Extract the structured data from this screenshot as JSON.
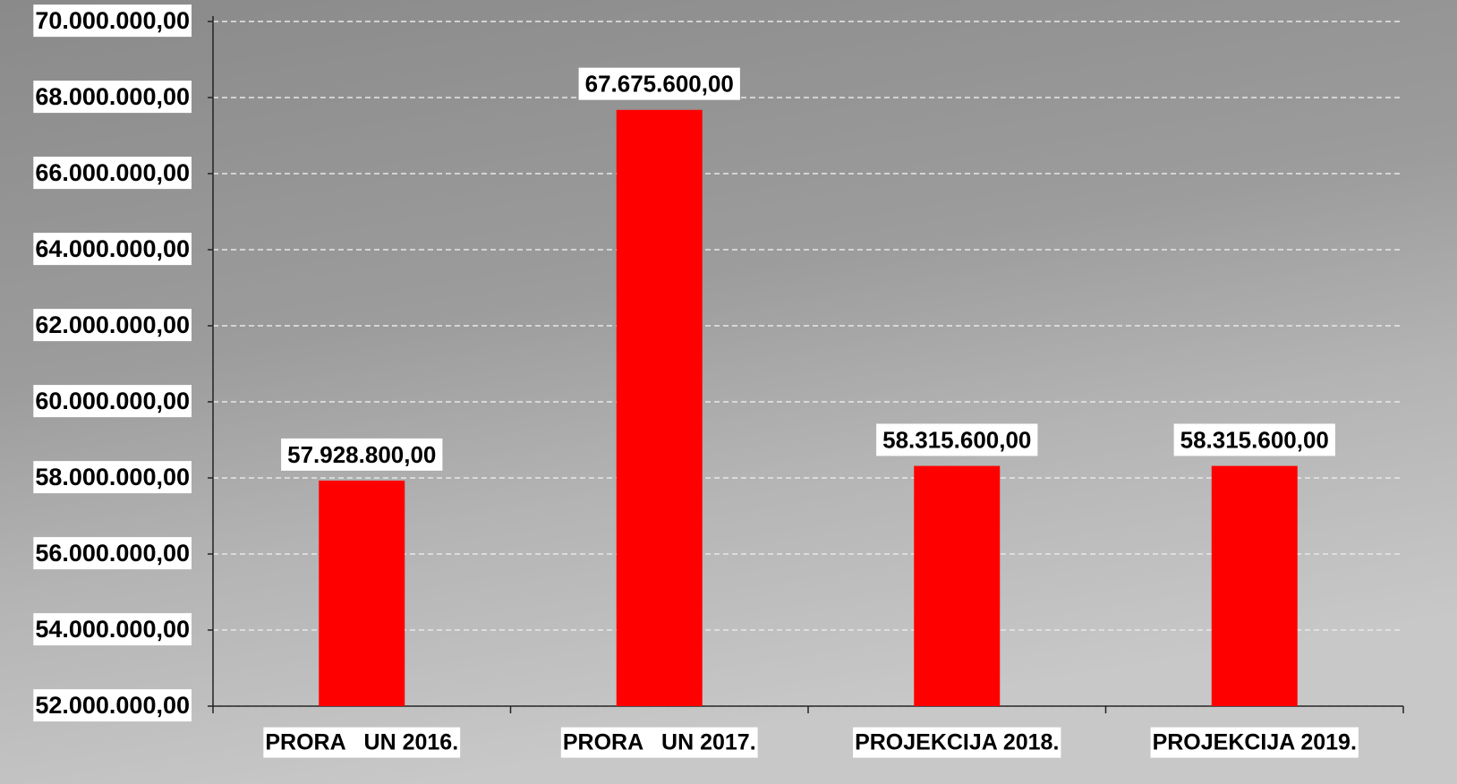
{
  "chart_data": {
    "type": "bar",
    "categories": [
      "PRORA   UN 2016.",
      "PRORA   UN 2017.",
      "PROJEKCIJA 2018.",
      "PROJEKCIJA 2019."
    ],
    "values": [
      57928800,
      67675600,
      58315600,
      58315600
    ],
    "value_labels": [
      "57.928.800,00",
      "67.675.600,00",
      "58.315.600,00",
      "58.315.600,00"
    ],
    "color": "#ff0000",
    "ylim": [
      52000000,
      70000000
    ],
    "yticks": [
      {
        "value": 52000000,
        "label": "52.000.000,00"
      },
      {
        "value": 54000000,
        "label": "54.000.000,00"
      },
      {
        "value": 56000000,
        "label": "56.000.000,00"
      },
      {
        "value": 58000000,
        "label": "58.000.000,00"
      },
      {
        "value": 60000000,
        "label": "60.000.000,00"
      },
      {
        "value": 62000000,
        "label": "62.000.000,00"
      },
      {
        "value": 64000000,
        "label": "64.000.000,00"
      },
      {
        "value": 66000000,
        "label": "66.000.000,00"
      },
      {
        "value": 68000000,
        "label": "68.000.000,00"
      },
      {
        "value": 70000000,
        "label": "70.000.000,00"
      }
    ],
    "grid": true
  }
}
